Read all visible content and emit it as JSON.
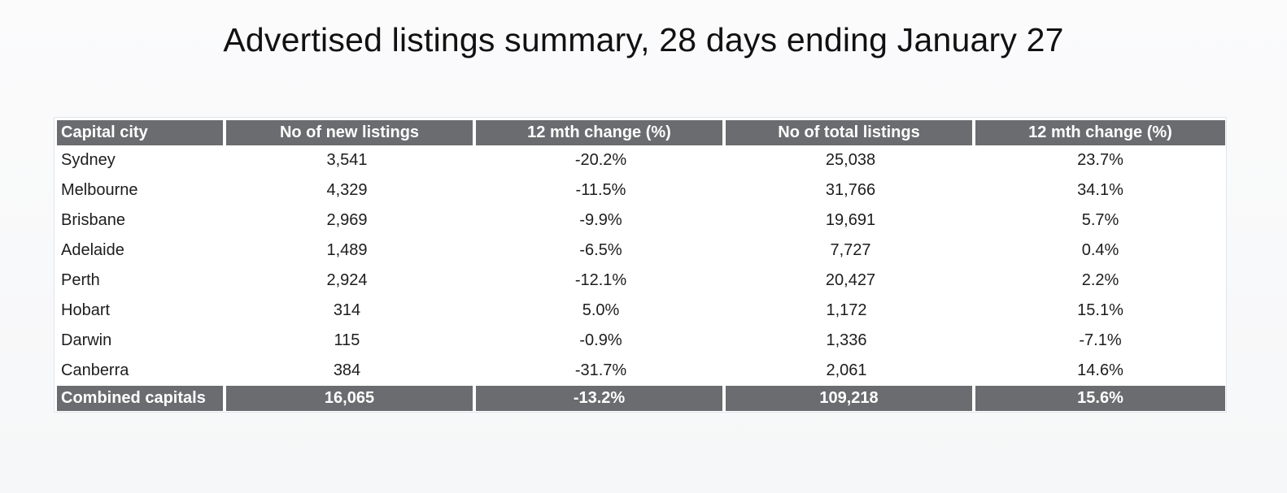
{
  "title": "Advertised listings summary, 28 days ending January 27",
  "table": {
    "headers": [
      "Capital city",
      "No of new listings",
      "12 mth change (%)",
      "No of total listings",
      "12 mth change (%)"
    ],
    "rows": [
      [
        "Sydney",
        "3,541",
        "-20.2%",
        "25,038",
        "23.7%"
      ],
      [
        "Melbourne",
        "4,329",
        "-11.5%",
        "31,766",
        "34.1%"
      ],
      [
        "Brisbane",
        "2,969",
        "-9.9%",
        "19,691",
        "5.7%"
      ],
      [
        "Adelaide",
        "1,489",
        "-6.5%",
        "7,727",
        "0.4%"
      ],
      [
        "Perth",
        "2,924",
        "-12.1%",
        "20,427",
        "2.2%"
      ],
      [
        "Hobart",
        "314",
        "5.0%",
        "1,172",
        "15.1%"
      ],
      [
        "Darwin",
        "115",
        "-0.9%",
        "1,336",
        "-7.1%"
      ],
      [
        "Canberra",
        "384",
        "-31.7%",
        "2,061",
        "14.6%"
      ]
    ],
    "total": [
      "Combined capitals",
      "16,065",
      "-13.2%",
      "109,218",
      "15.6%"
    ]
  },
  "colors": {
    "header_bg": "#6b6c6f",
    "header_text": "#ffffff",
    "background": "#f7f8f9"
  }
}
